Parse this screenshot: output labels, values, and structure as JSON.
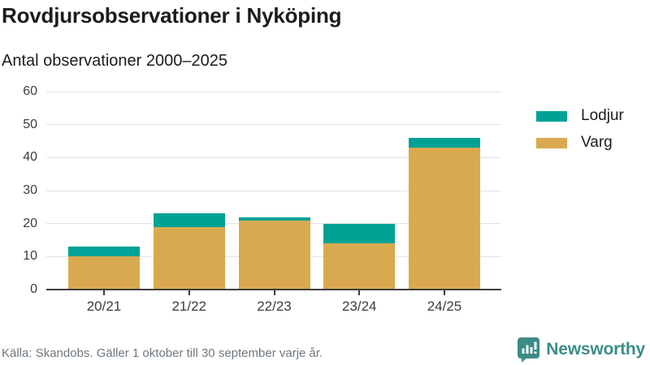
{
  "header": {
    "title": "Rovdjursobservationer i Nyköping",
    "subtitle": "Antal observationer 2000–2025"
  },
  "chart_data": {
    "type": "bar",
    "stacked": true,
    "categories": [
      "20/21",
      "21/22",
      "22/23",
      "23/24",
      "24/25"
    ],
    "series": [
      {
        "name": "Lodjur",
        "color": "#00a296",
        "values": [
          3,
          4,
          1,
          6,
          3
        ]
      },
      {
        "name": "Varg",
        "color": "#d9a950",
        "values": [
          10,
          19,
          21,
          14,
          43
        ]
      }
    ],
    "totals": [
      13,
      23,
      22,
      20,
      46
    ],
    "title": "Rovdjursobservationer i Nyköping",
    "subtitle": "Antal observationer 2000–2025",
    "xlabel": "",
    "ylabel": "",
    "ylim": [
      0,
      60
    ],
    "yticks": [
      0,
      10,
      20,
      30,
      40,
      50,
      60
    ],
    "grid": "horizontal",
    "legend_position": "right"
  },
  "footer": {
    "source": "Källa: Skandobs. Gäller 1 oktober till 30 september varje år."
  },
  "branding": {
    "logo_text": "Newsworthy",
    "logo_icon": "bar-chart-speech-bubble-icon",
    "brand_color": "#3b8c87"
  }
}
